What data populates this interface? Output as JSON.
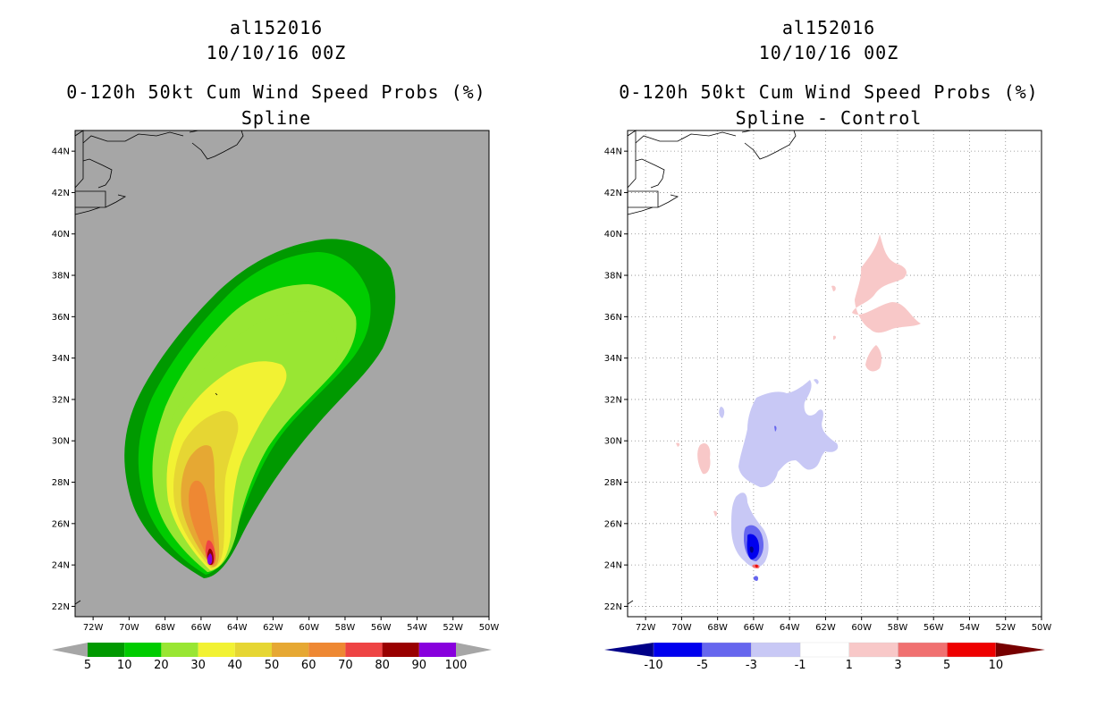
{
  "colors": {
    "land_gray": "#a6a6a6",
    "prob": [
      "#009900",
      "#00cc00",
      "#99e633",
      "#f2f233",
      "#e6d633",
      "#e6a833",
      "#ee8833",
      "#ee4444",
      "#990000",
      "#8800dd"
    ],
    "diff": [
      "#000088",
      "#0000ee",
      "#6666ee",
      "#c8c8f5",
      "#ffffff",
      "#f8c8c8",
      "#f07070",
      "#ee0000",
      "#770000"
    ]
  },
  "chart_data": [
    {
      "type": "heatmap",
      "storm_id": "al152016",
      "date": "10/10/16 00Z",
      "title": "0-120h 50kt Cum Wind Speed Probs (%)",
      "subtitle": "Spline",
      "x_ticks": [
        "72W",
        "70W",
        "68W",
        "66W",
        "64W",
        "62W",
        "60W",
        "58W",
        "56W",
        "54W",
        "52W",
        "50W"
      ],
      "y_ticks": [
        "22N",
        "24N",
        "26N",
        "28N",
        "30N",
        "32N",
        "34N",
        "36N",
        "38N",
        "40N",
        "42N",
        "44N"
      ],
      "xlim": [
        -73,
        -50
      ],
      "ylim": [
        21.5,
        45
      ],
      "grid": false,
      "colorbar_labels": [
        "5",
        "10",
        "20",
        "30",
        "40",
        "50",
        "60",
        "70",
        "80",
        "90",
        "100"
      ]
    },
    {
      "type": "heatmap",
      "storm_id": "al152016",
      "date": "10/10/16 00Z",
      "title": "0-120h 50kt Cum Wind Speed Probs (%)",
      "subtitle": "Spline - Control",
      "x_ticks": [
        "72W",
        "70W",
        "68W",
        "66W",
        "64W",
        "62W",
        "60W",
        "58W",
        "56W",
        "54W",
        "52W",
        "50W"
      ],
      "y_ticks": [
        "22N",
        "24N",
        "26N",
        "28N",
        "30N",
        "32N",
        "34N",
        "36N",
        "38N",
        "40N",
        "42N",
        "44N"
      ],
      "xlim": [
        -73,
        -50
      ],
      "ylim": [
        21.5,
        45
      ],
      "grid": true,
      "colorbar_labels": [
        "-10",
        "-5",
        "-3",
        "-1",
        "1",
        "3",
        "5",
        "10"
      ]
    }
  ]
}
